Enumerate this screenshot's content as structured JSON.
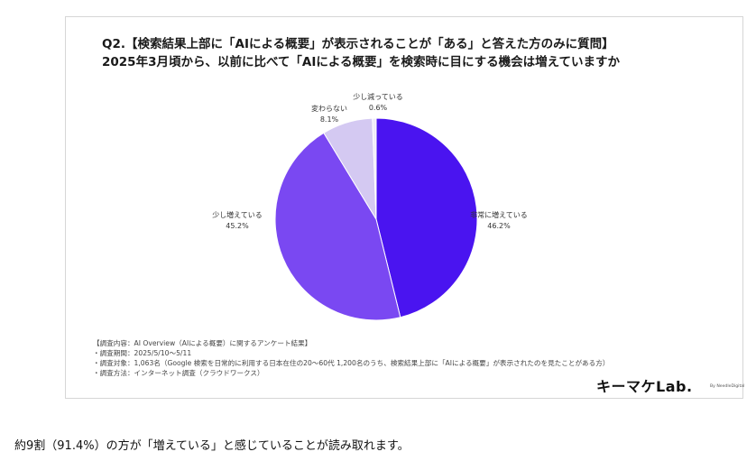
{
  "title_line1": "Q2.【検索結果上部に「AIによる概要」が表示されることが「ある」と答えた方のみに質問】",
  "title_line2": "2025年3月頃から、以前に比べて「AIによる概要」を検索時に目にする機会は増えていますか",
  "chart_data": {
    "type": "pie",
    "start": "top",
    "direction": "clockwise",
    "slices": [
      {
        "label": "非常に増えている",
        "value": 46.2,
        "value_label": "46.2%",
        "color": "#4a14f0"
      },
      {
        "label": "少し増えている",
        "value": 45.2,
        "value_label": "45.2%",
        "color": "#7a48f2"
      },
      {
        "label": "変わらない",
        "value": 8.1,
        "value_label": "8.1%",
        "color": "#d4c9f2"
      },
      {
        "label": "少し減っている",
        "value": 0.6,
        "value_label": "0.6%",
        "color": "#efeaf8"
      }
    ]
  },
  "notes": [
    "【調査内容：AI Overview（AIによる概要）に関するアンケート結果】",
    "・調査期間：2025/5/10〜5/11",
    "・調査対象：1,063名（Google 検索を日常的に利用する日本在住の20〜60代 1,200名のうち、検索結果上部に「AIによる概要」が表示されたのを見たことがある方）",
    "・調査方法：インターネット調査（クラウドワークス）"
  ],
  "logo": "キーマケLab.",
  "logo_sub": "By NeedleDigital",
  "caption": "約9割（91.4%）の方が「増えている」と感じていることが読み取れます。"
}
